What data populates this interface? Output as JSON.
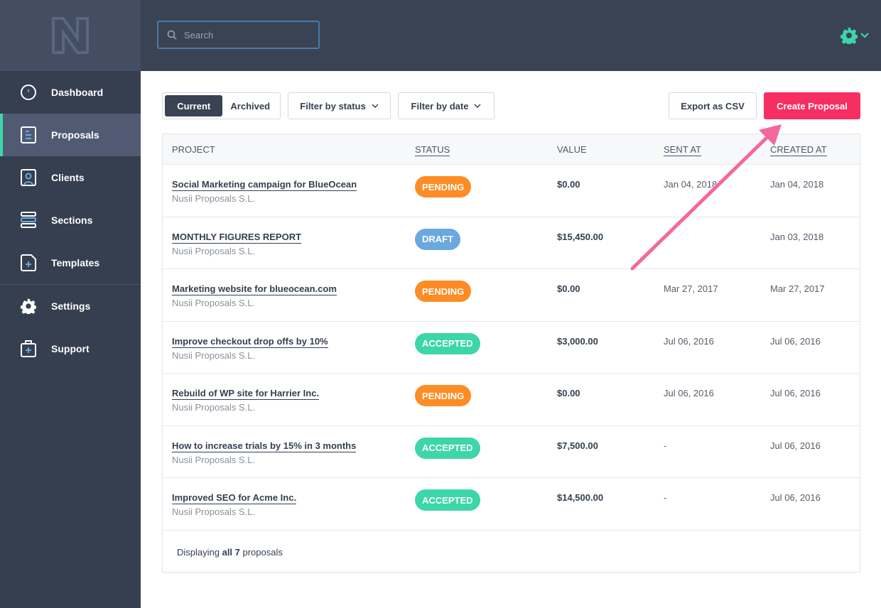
{
  "colors": {
    "accent": "#3dd6a8",
    "primary": "#f72e62",
    "pending": "#fd8c25",
    "draft": "#6aa8e0",
    "accepted": "#3dd6a8",
    "annotation_arrow": "#f5689a"
  },
  "search": {
    "placeholder": "Search",
    "icon": "search-icon"
  },
  "header": {
    "user_menu_icon": "gear-icon"
  },
  "sidebar": {
    "items": [
      {
        "label": "Dashboard",
        "icon": "gauge-icon"
      },
      {
        "label": "Proposals",
        "icon": "document-icon",
        "active": true
      },
      {
        "label": "Clients",
        "icon": "user-badge-icon"
      },
      {
        "label": "Sections",
        "icon": "stack-icon"
      },
      {
        "label": "Templates",
        "icon": "file-plus-icon"
      },
      {
        "label": "Settings",
        "icon": "gear-icon"
      },
      {
        "label": "Support",
        "icon": "first-aid-icon"
      }
    ]
  },
  "toolbar": {
    "current": "Current",
    "archived": "Archived",
    "filter_status": "Filter by status",
    "filter_date": "Filter by date",
    "export": "Export as CSV",
    "create": "Create Proposal"
  },
  "table": {
    "columns": [
      "PROJECT",
      "STATUS",
      "VALUE",
      "SENT AT",
      "CREATED AT"
    ],
    "rows": [
      {
        "name": "Social Marketing campaign for BlueOcean",
        "client": "Nusii Proposals S.L.",
        "status": "PENDING",
        "value": "$0.00",
        "sent": "Jan 04, 2018",
        "created": "Jan 04, 2018"
      },
      {
        "name": "MONTHLY FIGURES REPORT",
        "client": "Nusii Proposals S.L.",
        "status": "DRAFT",
        "value": "$15,450.00",
        "sent": "",
        "created": "Jan 03, 2018"
      },
      {
        "name": "Marketing website for blueocean.com",
        "client": "Nusii Proposals S.L.",
        "status": "PENDING",
        "value": "$0.00",
        "sent": "Mar 27, 2017",
        "created": "Mar 27, 2017"
      },
      {
        "name": "Improve checkout drop offs by 10%",
        "client": "Nusii Proposals S.L.",
        "status": "ACCEPTED",
        "value": "$3,000.00",
        "sent": "Jul 06, 2016",
        "created": "Jul 06, 2016"
      },
      {
        "name": "Rebuild of WP site for Harrier Inc.",
        "client": "Nusii Proposals S.L.",
        "status": "PENDING",
        "value": "$0.00",
        "sent": "Jul 06, 2016",
        "created": "Jul 06, 2016"
      },
      {
        "name": "How to increase trials by 15% in 3 months",
        "client": "Nusii Proposals S.L.",
        "status": "ACCEPTED",
        "value": "$7,500.00",
        "sent": "-",
        "created": "Jul 06, 2016"
      },
      {
        "name": "Improved SEO for Acme Inc.",
        "client": "Nusii Proposals S.L.",
        "status": "ACCEPTED",
        "value": "$14,500.00",
        "sent": "-",
        "created": "Jul 06, 2016"
      }
    ],
    "footer": {
      "prefix": "Displaying ",
      "bold": "all 7",
      "suffix": " proposals"
    }
  }
}
